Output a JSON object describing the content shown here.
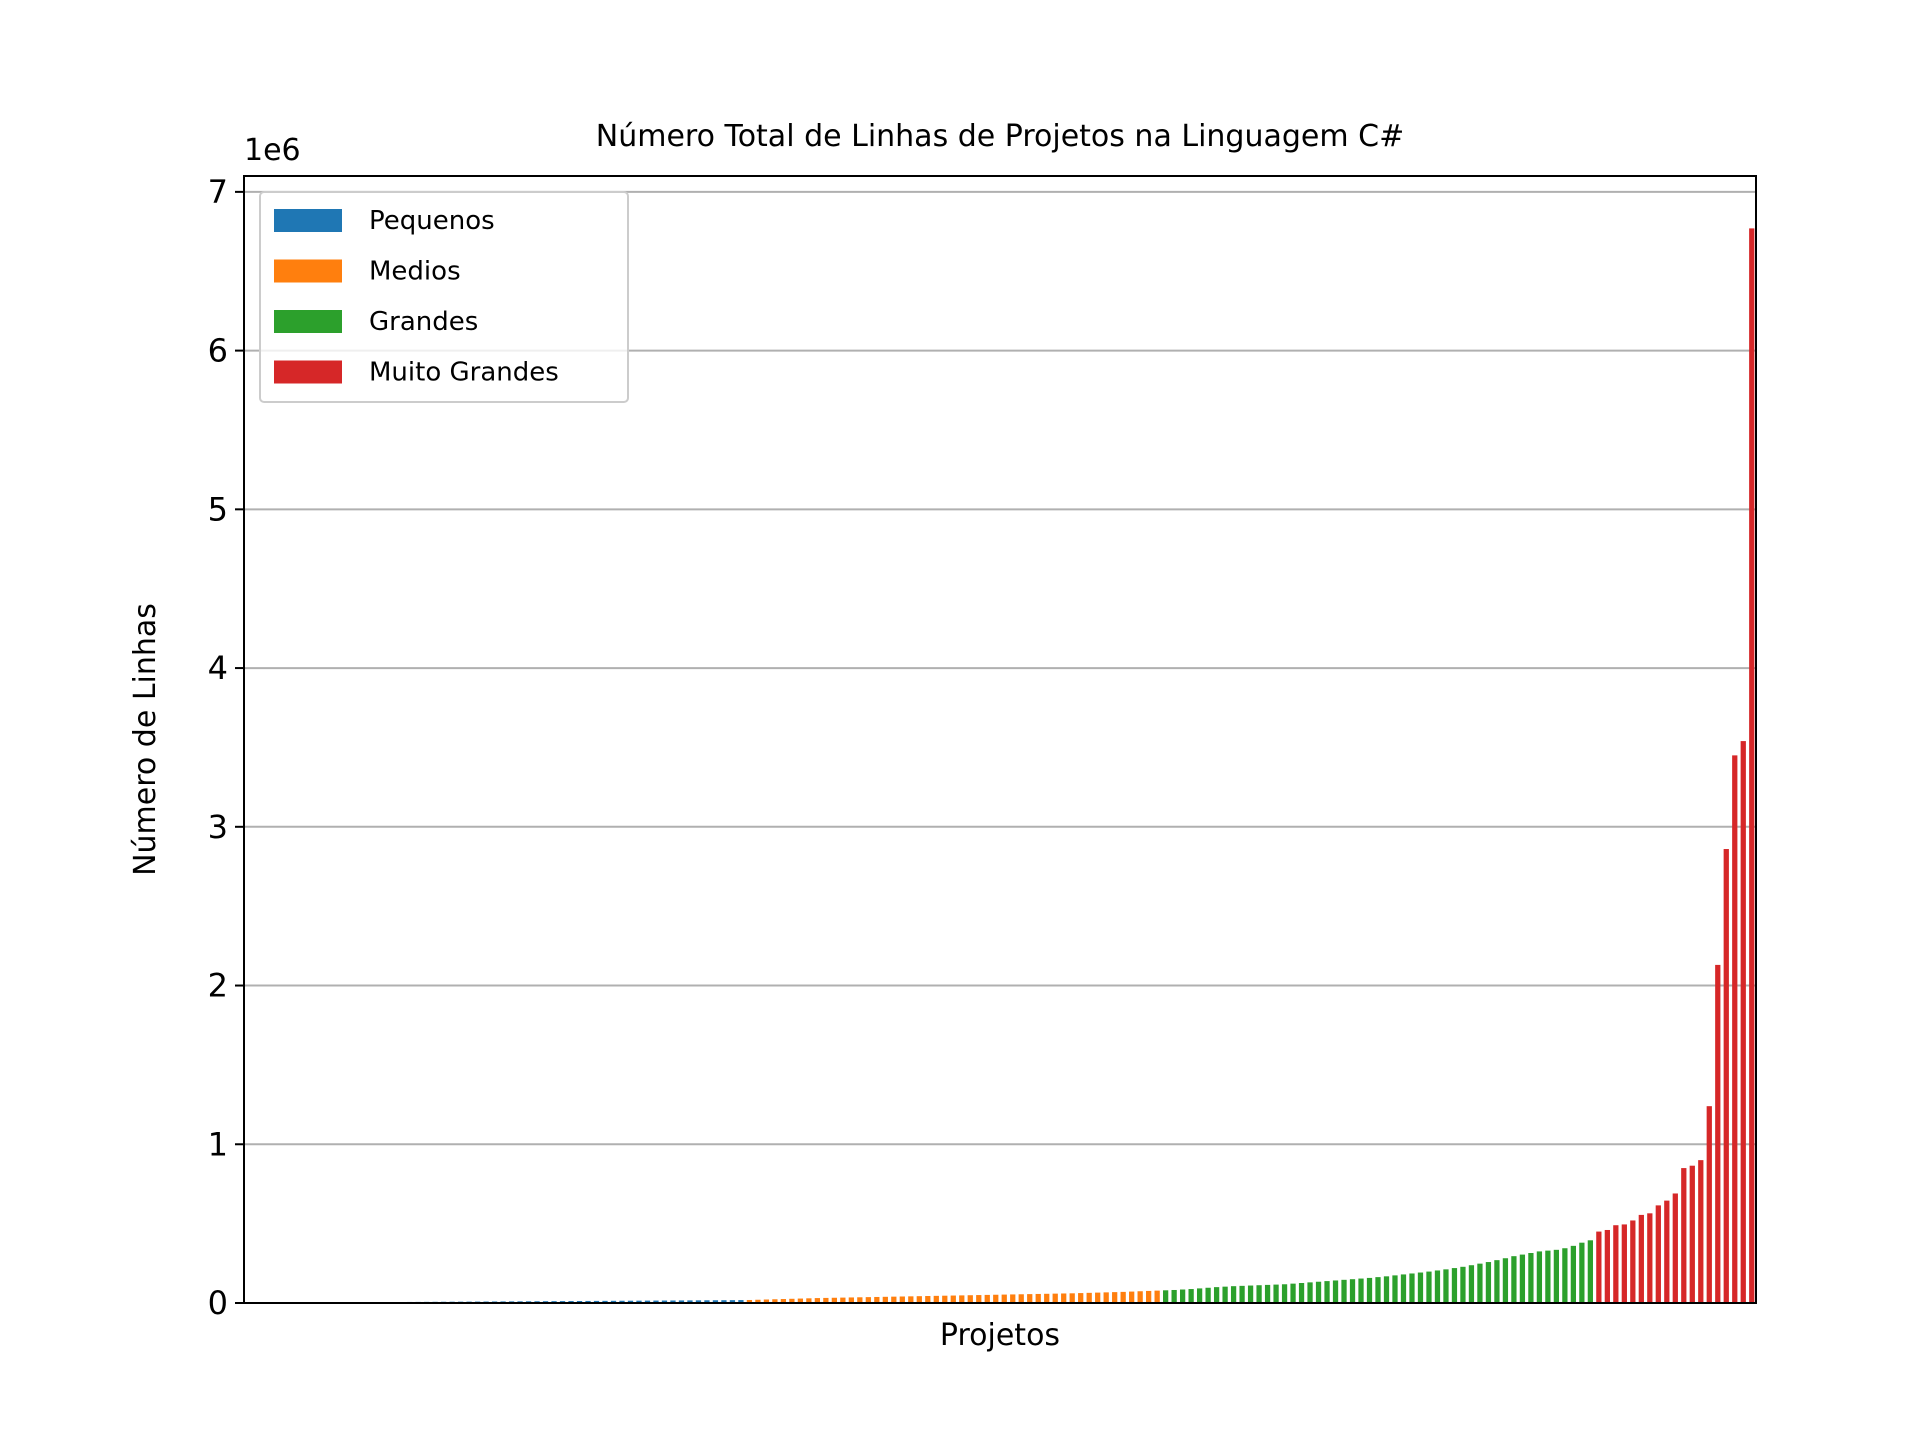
{
  "chart_data": {
    "type": "bar",
    "title": "Número Total de Linhas de Projetos na Linguagem C#",
    "xlabel": "Projetos",
    "ylabel": "Número de Linhas",
    "y_offset_label": "1e6",
    "y_scale": 1000000,
    "ylim": [
      0,
      7100000
    ],
    "yticks": [
      0,
      1,
      2,
      3,
      4,
      5,
      6,
      7
    ],
    "grid": "horizontal",
    "legend_position": "upper-left",
    "series": [
      {
        "name": "Pequenos",
        "color": "#1f77b4",
        "values": [
          1000,
          1200,
          1500,
          1800,
          2100,
          2400,
          2700,
          3000,
          3300,
          3600,
          3900,
          4200,
          4500,
          4800,
          5100,
          5400,
          5700,
          6000,
          6300,
          6600,
          6900,
          7200,
          7500,
          7800,
          8100,
          8400,
          8700,
          9000,
          9300,
          9600,
          9900,
          10200,
          10500,
          10800,
          11100,
          11400,
          11700,
          12000,
          12300,
          12600,
          12900,
          13200,
          13500,
          13800,
          14100,
          14400,
          14700,
          15000,
          15300,
          15600,
          15900,
          16200,
          16500,
          16800,
          17100,
          17400,
          17700,
          18000,
          18500
        ]
      },
      {
        "name": "Medios",
        "color": "#ff7f0e",
        "values": [
          19000,
          20500,
          22000,
          23500,
          25000,
          26500,
          28000,
          29500,
          31000,
          32000,
          33000,
          34000,
          35000,
          36000,
          37000,
          38000,
          39000,
          40000,
          41000,
          42000,
          43000,
          44000,
          45000,
          46000,
          47000,
          48000,
          49000,
          50000,
          51000,
          52000,
          53000,
          54000,
          55000,
          56000,
          57000,
          58000,
          59000,
          60000,
          61000,
          62500,
          64000,
          65500,
          67000,
          68500,
          70000,
          72000,
          74000,
          76000,
          78000
        ]
      },
      {
        "name": "Grandes",
        "color": "#2ca02c",
        "values": [
          80000,
          82000,
          85000,
          88000,
          92000,
          96000,
          100000,
          103000,
          106000,
          108000,
          110000,
          112000,
          114000,
          116000,
          118000,
          122000,
          126000,
          130000,
          134000,
          138000,
          142000,
          146000,
          150000,
          154000,
          158000,
          163000,
          168000,
          174000,
          180000,
          186000,
          192000,
          198000,
          205000,
          212000,
          220000,
          228000,
          238000,
          248000,
          258000,
          270000,
          282000,
          295000,
          305000,
          315000,
          325000,
          330000,
          335000,
          345000,
          360000,
          380000,
          395000
        ]
      },
      {
        "name": "Muito Grandes",
        "color": "#d62728",
        "values": [
          450000,
          460000,
          490000,
          495000,
          520000,
          555000,
          565000,
          615000,
          645000,
          690000,
          850000,
          865000,
          900000,
          1240000,
          2130000,
          2860000,
          3450000,
          3540000,
          6770000
        ]
      }
    ]
  }
}
